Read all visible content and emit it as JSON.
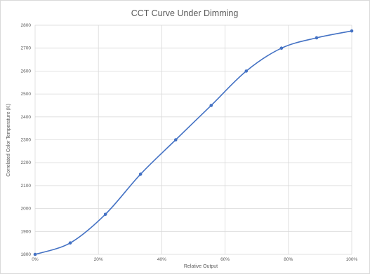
{
  "chart_data": {
    "type": "line",
    "title": "CCT Curve Under Dimming",
    "xlabel": "Relative Output",
    "ylabel": "Correlated Color Temperature (K)",
    "x": [
      0,
      11.1,
      22.2,
      33.3,
      44.4,
      55.6,
      66.7,
      77.8,
      88.9,
      100
    ],
    "series": [
      {
        "values": [
          1800,
          1850,
          1975,
          2150,
          2300,
          2450,
          2600,
          2700,
          2745,
          2775
        ],
        "color": "#4472c4"
      }
    ],
    "xlim": [
      0,
      100
    ],
    "ylim": [
      1800,
      2800
    ],
    "x_ticks": [
      0,
      20,
      40,
      60,
      80,
      100
    ],
    "x_tick_labels": [
      "0%",
      "20%",
      "40%",
      "60%",
      "80%",
      "100%"
    ],
    "y_ticks": [
      1800,
      1900,
      2000,
      2100,
      2200,
      2300,
      2400,
      2500,
      2600,
      2700,
      2800
    ],
    "y_tick_labels": [
      "1800",
      "1900",
      "2000",
      "2100",
      "2200",
      "2300",
      "2400",
      "2500",
      "2600",
      "2700",
      "2800"
    ],
    "grid": true,
    "legend": "none",
    "colors": {
      "line": "#4472c4",
      "grid": "#d9d9d9",
      "text": "#595959"
    }
  }
}
